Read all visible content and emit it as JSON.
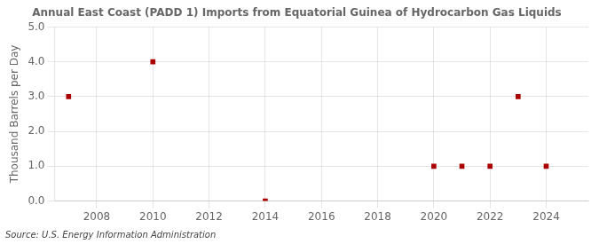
{
  "chart_data": {
    "type": "scatter",
    "title": "Annual East Coast (PADD 1) Imports from Equatorial Guinea of Hydrocarbon Gas Liquids",
    "y_label": "Thousand Barrels per Day",
    "annotations": [
      "Source: U.S. Energy Information Administration"
    ],
    "x": [
      2007,
      2010,
      2014,
      2020,
      2021,
      2022,
      2023,
      2024
    ],
    "values": [
      3.0,
      4.0,
      0.0,
      1.0,
      1.0,
      1.0,
      3.0,
      1.0
    ],
    "color": "#aa0000",
    "marker": "square",
    "xlim": [
      2006.5,
      2025.5
    ],
    "xticks": [
      2008,
      2010,
      2012,
      2014,
      2016,
      2018,
      2020,
      2022,
      2024
    ],
    "ylim": [
      0.0,
      5.0
    ],
    "yticks": [
      {
        "value": 0.0,
        "label": "0.0"
      },
      {
        "value": 1.0,
        "label": "1.0"
      },
      {
        "value": 2.0,
        "label": "2.0"
      },
      {
        "value": 3.0,
        "label": "3.0"
      },
      {
        "value": 4.0,
        "label": "4.0"
      },
      {
        "value": 5.0,
        "label": "5.0"
      }
    ],
    "grid": true
  }
}
